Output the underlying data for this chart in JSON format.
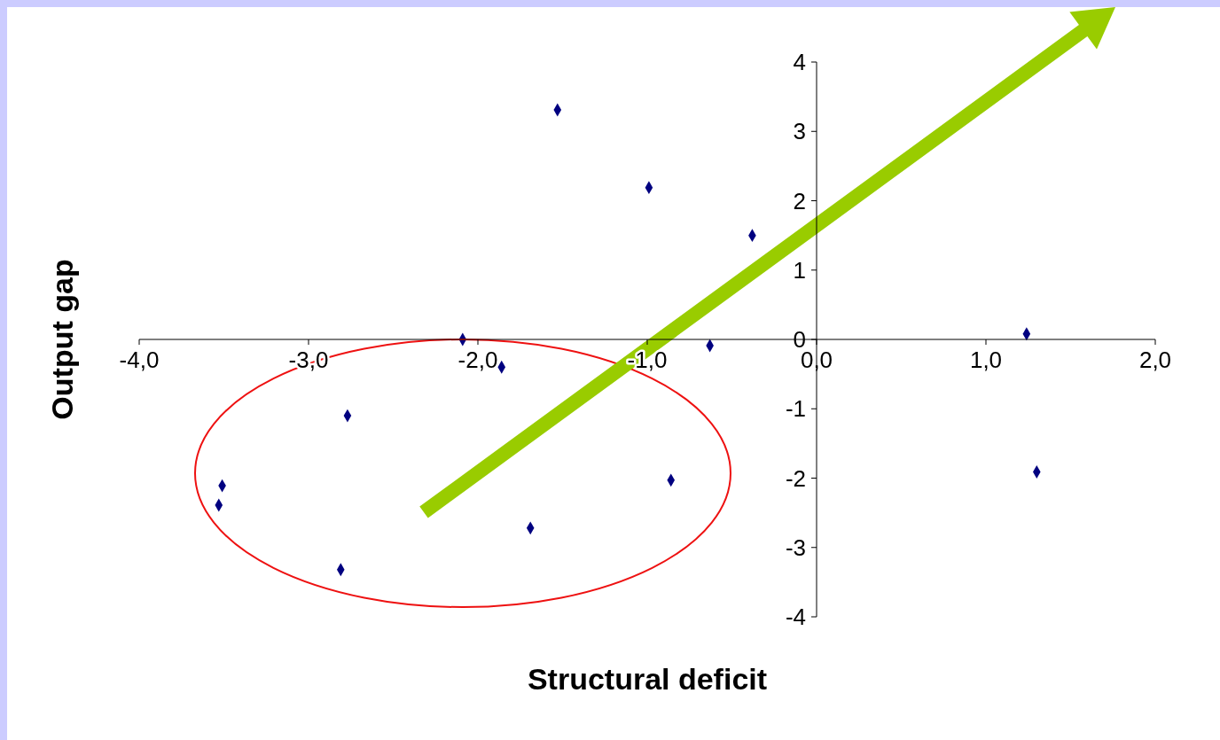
{
  "chart_data": {
    "type": "scatter",
    "xlabel": "Structural deficit",
    "ylabel": "Output gap",
    "x": [
      -1.53,
      -0.99,
      -0.38,
      1.24,
      1.3,
      -0.63,
      -2.09,
      -1.86,
      -2.77,
      -3.51,
      -3.53,
      -2.81,
      -1.69,
      -0.86
    ],
    "values": [
      3.31,
      2.19,
      1.5,
      0.08,
      -1.91,
      -0.09,
      0,
      -0.4,
      -1.1,
      -2.11,
      -2.39,
      -3.32,
      -2.72,
      -2.03
    ],
    "color": "#000080",
    "marker": "diamond",
    "xlim": [
      -4,
      2
    ],
    "xticks": [
      {
        "value": -4,
        "label": "-4,0"
      },
      {
        "value": -3,
        "label": "-3,0"
      },
      {
        "value": -2,
        "label": "-2,0"
      },
      {
        "value": -1,
        "label": "-1,0"
      },
      {
        "value": 0,
        "label": "0,0"
      },
      {
        "value": 1,
        "label": "1,0"
      },
      {
        "value": 2,
        "label": "2,0"
      }
    ],
    "ylim": [
      -4,
      4
    ],
    "yticks": [
      -4,
      -3,
      -2,
      -1,
      0,
      1,
      2,
      3,
      4
    ]
  }
}
